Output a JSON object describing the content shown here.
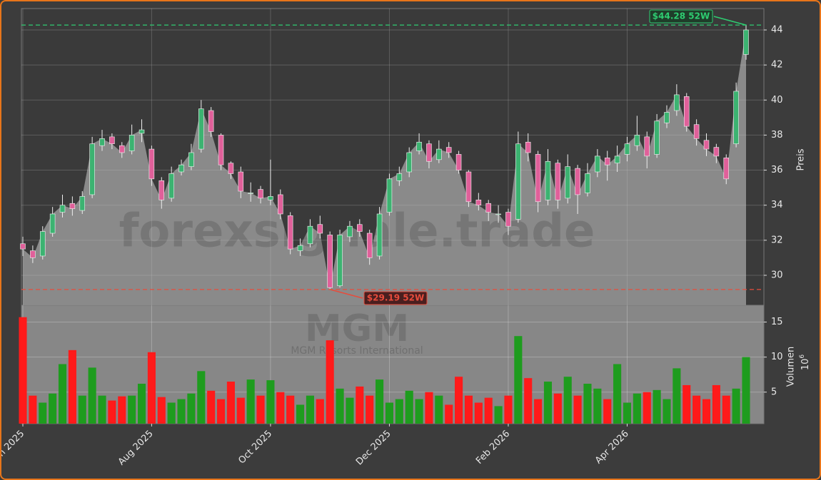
{
  "chart_data": [
    {
      "type": "candlestick",
      "y_label": "Preis",
      "watermark": "forexsignale.trade",
      "up_color": "#3cb371",
      "down_color": "#e0609a",
      "area_color": "#8a8a8a",
      "open": [
        31.8,
        31.4,
        31.1,
        32.4,
        33.6,
        34.1,
        33.7,
        34.6,
        37.4,
        37.9,
        37.4,
        37.1,
        38.1,
        37.2,
        35.4,
        34.4,
        35.9,
        36.2,
        37.2,
        39.4,
        38.0,
        36.4,
        35.9,
        34.7,
        34.9,
        34.3,
        34.6,
        33.4,
        31.4,
        31.8,
        32.9,
        32.3,
        29.4,
        32.2,
        32.9,
        32.4,
        31.1,
        33.6,
        35.4,
        35.9,
        37.1,
        37.5,
        36.6,
        37.3,
        36.9,
        35.9,
        34.3,
        34.1,
        33.5,
        33.6,
        33.2,
        37.6,
        36.9,
        34.3,
        36.4,
        34.4,
        36.1,
        34.7,
        35.9,
        36.7,
        36.4,
        36.9,
        37.4,
        37.9,
        36.9,
        38.7,
        39.4,
        40.2,
        38.6,
        37.7,
        37.3,
        36.7,
        37.5,
        42.6
      ],
      "high": [
        32.2,
        31.7,
        32.8,
        33.9,
        34.6,
        34.5,
        34.8,
        37.9,
        38.3,
        38.1,
        37.6,
        38.6,
        38.9,
        37.4,
        35.6,
        36.2,
        36.6,
        37.5,
        40.0,
        39.6,
        38.1,
        36.5,
        36.2,
        35.3,
        35.1,
        36.6,
        34.9,
        33.6,
        32.1,
        33.2,
        33.4,
        32.5,
        32.6,
        33.1,
        33.2,
        32.6,
        33.9,
        35.8,
        36.2,
        37.3,
        38.1,
        37.7,
        37.7,
        37.6,
        37.1,
        36.0,
        34.7,
        34.3,
        34.0,
        33.8,
        38.2,
        38.1,
        37.1,
        37.2,
        36.6,
        36.9,
        36.3,
        36.4,
        37.2,
        37.1,
        37.4,
        37.9,
        39.1,
        38.2,
        39.2,
        39.7,
        40.9,
        40.4,
        38.9,
        38.1,
        37.5,
        36.9,
        41.0,
        44.28
      ],
      "low": [
        31.1,
        30.7,
        30.9,
        32.2,
        33.3,
        33.4,
        33.5,
        34.4,
        37.1,
        37.2,
        36.7,
        36.9,
        37.6,
        35.1,
        33.8,
        34.2,
        35.7,
        36.0,
        37.0,
        37.9,
        36.0,
        35.5,
        34.4,
        34.2,
        34.1,
        34.0,
        33.2,
        31.2,
        31.1,
        31.6,
        32.1,
        29.19,
        29.3,
        31.9,
        32.2,
        30.6,
        30.9,
        33.4,
        35.1,
        35.6,
        36.9,
        36.1,
        36.4,
        36.7,
        35.8,
        33.9,
        33.7,
        33.1,
        33.0,
        32.3,
        33.0,
        36.5,
        33.6,
        34.0,
        33.8,
        34.1,
        33.5,
        34.5,
        35.6,
        35.4,
        35.9,
        36.5,
        37.1,
        36.1,
        36.7,
        38.4,
        39.1,
        38.2,
        37.4,
        36.8,
        36.4,
        35.2,
        37.3,
        42.3
      ],
      "close": [
        31.5,
        31.0,
        32.5,
        33.5,
        34.0,
        33.8,
        34.5,
        37.5,
        37.8,
        37.5,
        37.0,
        38.0,
        38.3,
        35.5,
        34.3,
        35.8,
        36.3,
        37.0,
        39.5,
        38.2,
        36.3,
        35.8,
        34.8,
        34.7,
        34.4,
        34.5,
        33.5,
        31.5,
        31.7,
        32.8,
        32.4,
        29.3,
        32.3,
        32.8,
        32.5,
        31.0,
        33.5,
        35.5,
        35.8,
        37.0,
        37.6,
        36.5,
        37.2,
        37.0,
        36.0,
        34.2,
        34.0,
        33.6,
        33.5,
        32.8,
        37.5,
        37.0,
        34.2,
        36.5,
        34.3,
        36.2,
        34.6,
        35.8,
        36.8,
        36.3,
        36.8,
        37.5,
        38.0,
        36.8,
        38.8,
        39.3,
        40.3,
        38.5,
        37.8,
        37.2,
        36.8,
        35.5,
        40.5,
        44.0
      ],
      "ylim": [
        28.29,
        45.22
      ],
      "yticks": [
        30,
        32,
        34,
        36,
        38,
        40,
        42,
        44
      ],
      "grid": true,
      "annotations": [
        {
          "value": 44.28,
          "label": "$44.28 52W",
          "color": "#2ecc71",
          "index": 73
        },
        {
          "value": 29.19,
          "label": "$29.19 52W",
          "color": "#e74c3c",
          "index": 31
        }
      ]
    },
    {
      "type": "bar",
      "y_label": "Volumen",
      "scale_base": "10",
      "scale_exp": "6",
      "watermark": "MGM",
      "watermark_sub": "MGM Resorts International",
      "categories": [
        "Jun 2025",
        null,
        null,
        null,
        null,
        null,
        null,
        null,
        null,
        null,
        null,
        null,
        null,
        "Aug 2025",
        null,
        null,
        null,
        null,
        null,
        null,
        null,
        null,
        null,
        null,
        null,
        "Oct 2025",
        null,
        null,
        null,
        null,
        null,
        null,
        null,
        null,
        null,
        null,
        null,
        "Dec 2025",
        null,
        null,
        null,
        null,
        null,
        null,
        null,
        null,
        null,
        null,
        null,
        "Feb 2026",
        null,
        null,
        null,
        null,
        null,
        null,
        null,
        null,
        null,
        null,
        null,
        "Apr 2026",
        null,
        null,
        null,
        null,
        null,
        null,
        null,
        null,
        null,
        null,
        null,
        null
      ],
      "values": [
        15.7,
        4.5,
        3.5,
        4.8,
        9.0,
        11.0,
        4.5,
        8.5,
        4.5,
        3.8,
        4.4,
        4.5,
        6.2,
        10.7,
        4.3,
        3.5,
        4.0,
        4.8,
        8.0,
        5.2,
        4.0,
        6.5,
        4.2,
        6.8,
        4.5,
        6.7,
        5.0,
        4.5,
        3.2,
        4.5,
        4.0,
        12.4,
        5.5,
        4.2,
        5.8,
        4.5,
        6.8,
        3.5,
        4.0,
        5.2,
        4.0,
        5.0,
        4.5,
        3.2,
        7.2,
        4.5,
        3.5,
        4.2,
        3.0,
        4.5,
        13.0,
        7.0,
        4.0,
        6.5,
        4.8,
        7.2,
        4.5,
        6.2,
        5.5,
        4.0,
        9.0,
        3.5,
        4.8,
        5.0,
        5.3,
        4.0,
        8.4,
        6.0,
        4.5,
        4.0,
        6.0,
        4.5,
        5.5,
        10.0
      ],
      "ylim": [
        0.5,
        17.4
      ],
      "yticks": [
        5,
        10,
        15
      ],
      "grid": true
    }
  ]
}
